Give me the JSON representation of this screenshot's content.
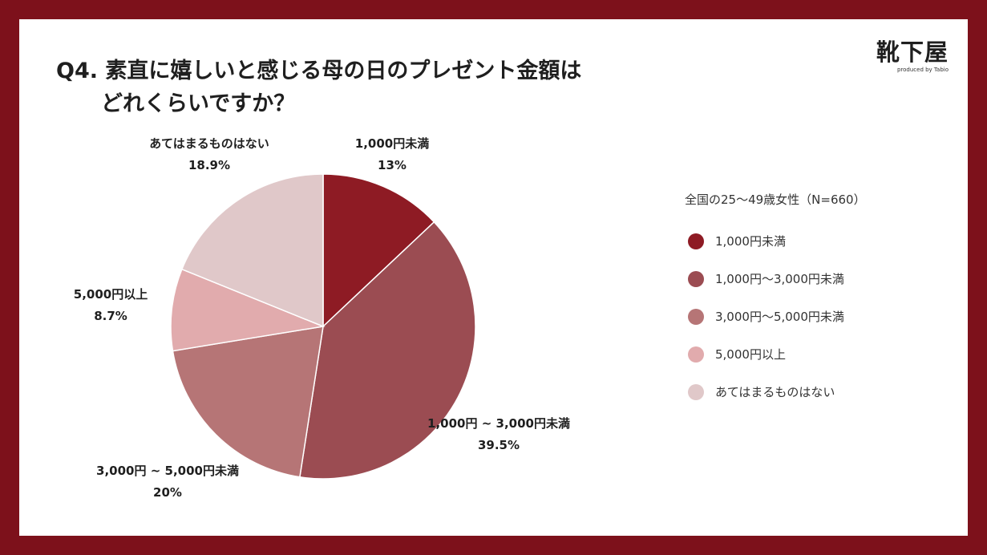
{
  "title": {
    "line1": "Q4. 素直に嬉しいと感じる母の日のプレゼント金額は",
    "line2": "どれくらいですか？"
  },
  "logo": {
    "brand": "靴下屋",
    "tagline": "produced by Tabio"
  },
  "legend": {
    "title": "全国の25～49歳女性（N=660）",
    "items": [
      {
        "label": "1,000円未満",
        "color": "#8e1b24"
      },
      {
        "label": "1,000円～3,000円未満",
        "color": "#9b4c52"
      },
      {
        "label": "3,000円～5,000円未満",
        "color": "#b67576"
      },
      {
        "label": "5,000円以上",
        "color": "#e1abad"
      },
      {
        "label": "あてはまるものはない",
        "color": "#e0c8c9"
      }
    ]
  },
  "chart_data": {
    "type": "pie",
    "categories": [
      "1,000円未満",
      "1,000円～3,000円未満",
      "3,000円～5,000円未満",
      "5,000円以上",
      "あてはまるものはない"
    ],
    "values": [
      13,
      39.5,
      20,
      8.7,
      18.9
    ],
    "value_labels": [
      "13%",
      "39.5%",
      "20%",
      "8.7%",
      "18.9%"
    ],
    "slice_labels": [
      "1,000円未満",
      "1,000円 ~ 3,000円未満",
      "3,000円 ~ 5,000円未満",
      "5,000円以上",
      "あてはまるものはない"
    ],
    "colors": [
      "#8e1b24",
      "#9b4c52",
      "#b67576",
      "#e1abad",
      "#e0c8c9"
    ],
    "start_angle": "12 o'clock",
    "direction": "clockwise"
  }
}
